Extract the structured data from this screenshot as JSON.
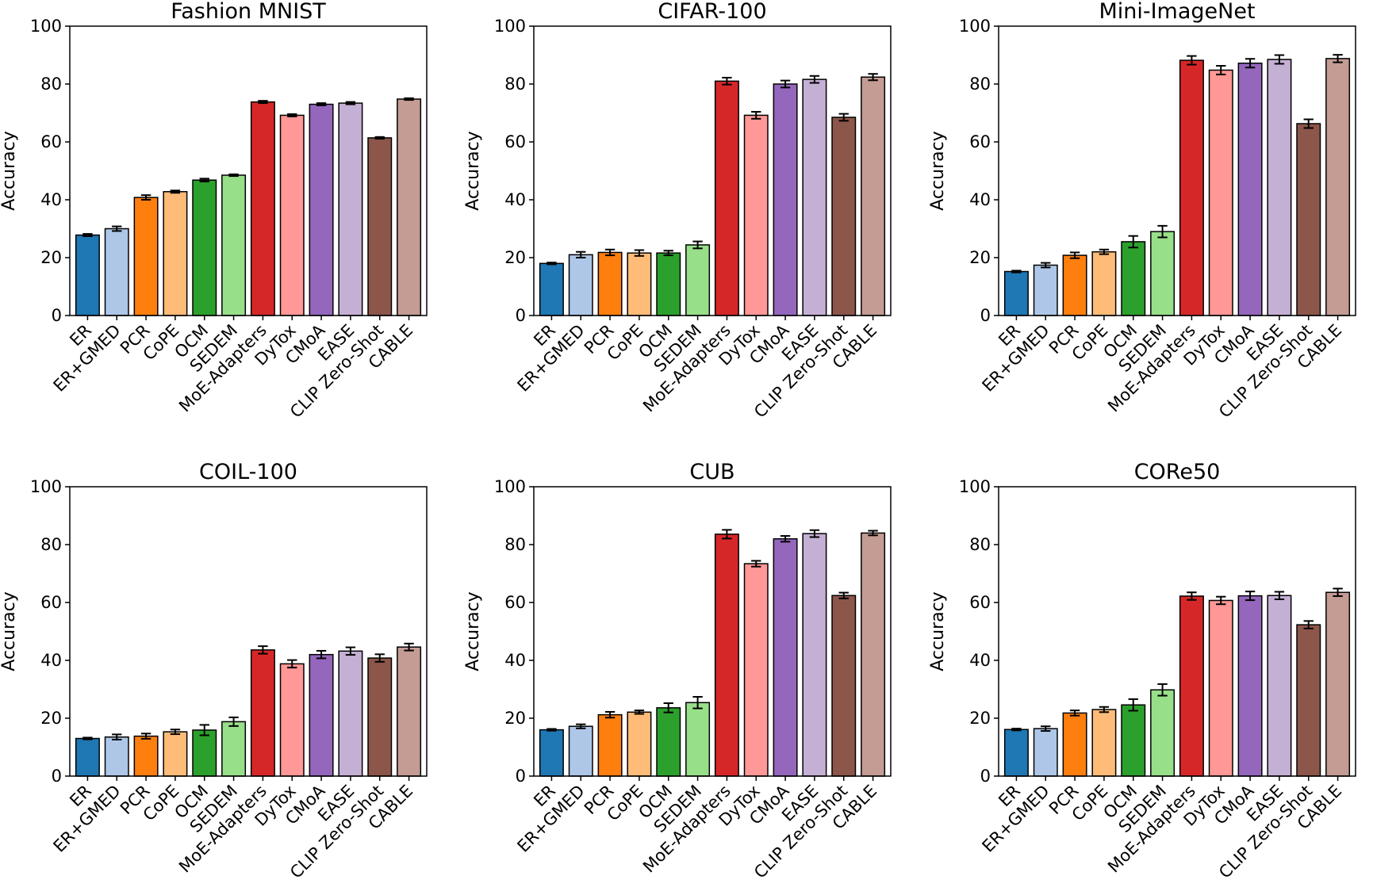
{
  "colors": [
    "#1f77b4",
    "#aec7e8",
    "#ff7f0e",
    "#ffbb78",
    "#2ca02c",
    "#98df8a",
    "#d62728",
    "#ff9896",
    "#9467bd",
    "#c5b0d5",
    "#8c564b",
    "#c49c94"
  ],
  "chart_data": [
    {
      "type": "bar",
      "title": "Fashion MNIST",
      "xlabel": "",
      "ylabel": "Accuracy",
      "ylim": [
        0,
        100
      ],
      "yticks": [
        "0",
        "20",
        "40",
        "60",
        "80",
        "100"
      ],
      "categories": [
        "ER",
        "ER+GMED",
        "PCR",
        "CoPE",
        "OCM",
        "SEDEM",
        "MoE-Adapters",
        "DyTox",
        "CMoA",
        "EASE",
        "CLIP Zero-Shot",
        "CABLE"
      ],
      "values": [
        27.8,
        30.0,
        40.8,
        42.8,
        46.8,
        48.5,
        73.8,
        69.2,
        73.0,
        73.4,
        61.4,
        74.8
      ],
      "errors": [
        0.4,
        0.8,
        0.8,
        0.4,
        0.5,
        0.3,
        0.4,
        0.4,
        0.4,
        0.4,
        0.3,
        0.3
      ]
    },
    {
      "type": "bar",
      "title": "CIFAR-100",
      "xlabel": "",
      "ylabel": "Accuracy",
      "ylim": [
        0,
        100
      ],
      "yticks": [
        "0",
        "20",
        "40",
        "60",
        "80",
        "100"
      ],
      "categories": [
        "ER",
        "ER+GMED",
        "PCR",
        "CoPE",
        "OCM",
        "SEDEM",
        "MoE-Adapters",
        "DyTox",
        "CMoA",
        "EASE",
        "CLIP Zero-Shot",
        "CABLE"
      ],
      "values": [
        18.0,
        21.0,
        21.8,
        21.6,
        21.6,
        24.4,
        81.0,
        69.2,
        80.0,
        81.6,
        68.5,
        82.4
      ],
      "errors": [
        0.3,
        1.0,
        1.0,
        1.0,
        0.8,
        1.2,
        1.2,
        1.2,
        1.2,
        1.2,
        1.2,
        1.1
      ]
    },
    {
      "type": "bar",
      "title": "Mini-ImageNet",
      "xlabel": "",
      "ylabel": "Accuracy",
      "ylim": [
        0,
        100
      ],
      "yticks": [
        "0",
        "20",
        "40",
        "60",
        "80",
        "100"
      ],
      "categories": [
        "ER",
        "ER+GMED",
        "PCR",
        "CoPE",
        "OCM",
        "SEDEM",
        "MoE-Adapters",
        "DyTox",
        "CMoA",
        "EASE",
        "CLIP Zero-Shot",
        "CABLE"
      ],
      "values": [
        15.2,
        17.4,
        20.8,
        22.0,
        25.5,
        29.0,
        88.2,
        84.8,
        87.2,
        88.5,
        66.3,
        88.8
      ],
      "errors": [
        0.3,
        0.8,
        1.0,
        0.8,
        2.0,
        2.0,
        1.5,
        1.5,
        1.5,
        1.5,
        1.5,
        1.3
      ]
    },
    {
      "type": "bar",
      "title": "COIL-100",
      "xlabel": "",
      "ylabel": "Accuracy",
      "ylim": [
        0,
        100
      ],
      "yticks": [
        "0",
        "20",
        "40",
        "60",
        "80",
        "100"
      ],
      "categories": [
        "ER",
        "ER+GMED",
        "PCR",
        "CoPE",
        "OCM",
        "SEDEM",
        "MoE-Adapters",
        "DyTox",
        "CMoA",
        "EASE",
        "CLIP Zero-Shot",
        "CABLE"
      ],
      "values": [
        13.0,
        13.5,
        13.8,
        15.3,
        15.9,
        18.8,
        43.6,
        38.8,
        42.0,
        43.2,
        40.8,
        44.6
      ],
      "errors": [
        0.3,
        0.9,
        0.9,
        0.8,
        1.8,
        1.5,
        1.3,
        1.3,
        1.3,
        1.3,
        1.3,
        1.2
      ]
    },
    {
      "type": "bar",
      "title": "CUB",
      "xlabel": "",
      "ylabel": "Accuracy",
      "ylim": [
        0,
        100
      ],
      "yticks": [
        "0",
        "20",
        "40",
        "60",
        "80",
        "100"
      ],
      "categories": [
        "ER",
        "ER+GMED",
        "PCR",
        "CoPE",
        "OCM",
        "SEDEM",
        "MoE-Adapters",
        "DyTox",
        "CMoA",
        "EASE",
        "CLIP Zero-Shot",
        "CABLE"
      ],
      "values": [
        16.0,
        17.2,
        21.2,
        22.1,
        23.6,
        25.4,
        83.6,
        73.4,
        82.0,
        83.8,
        62.4,
        84.0
      ],
      "errors": [
        0.3,
        0.7,
        1.0,
        0.6,
        1.6,
        2.0,
        1.5,
        1.0,
        1.0,
        1.2,
        1.0,
        0.8
      ]
    },
    {
      "type": "bar",
      "title": "CORe50",
      "xlabel": "",
      "ylabel": "Accuracy",
      "ylim": [
        0,
        100
      ],
      "yticks": [
        "0",
        "20",
        "40",
        "60",
        "80",
        "100"
      ],
      "categories": [
        "ER",
        "ER+GMED",
        "PCR",
        "CoPE",
        "OCM",
        "SEDEM",
        "MoE-Adapters",
        "DyTox",
        "CMoA",
        "EASE",
        "CLIP Zero-Shot",
        "CABLE"
      ],
      "values": [
        16.1,
        16.4,
        21.8,
        23.0,
        24.6,
        29.8,
        62.2,
        60.7,
        62.3,
        62.4,
        52.3,
        63.5
      ],
      "errors": [
        0.3,
        0.8,
        0.9,
        0.9,
        2.0,
        2.0,
        1.3,
        1.3,
        1.5,
        1.3,
        1.3,
        1.3
      ]
    }
  ]
}
